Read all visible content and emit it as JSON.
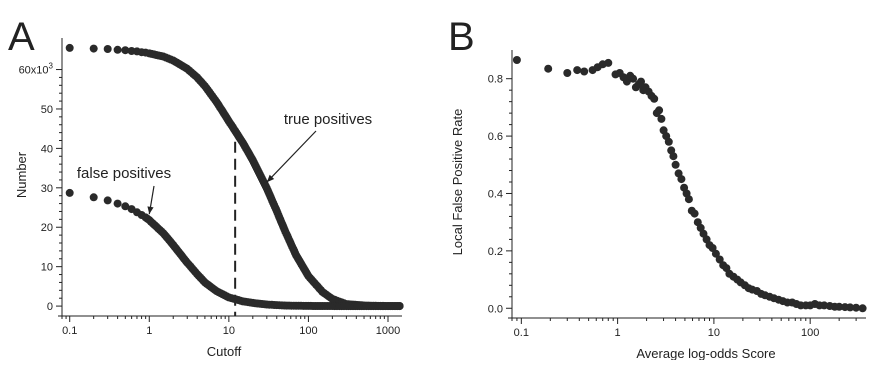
{
  "chart_data": [
    {
      "panel_label": "A",
      "type": "scatter",
      "xlabel": "Cutoff",
      "ylabel": "Number",
      "x_scale": "log",
      "xlim": [
        0.08,
        1500
      ],
      "ylim": [
        -1500,
        68000
      ],
      "x_ticks": [
        {
          "value": 0.1,
          "label": "0.1"
        },
        {
          "value": 1,
          "label": "1"
        },
        {
          "value": 10,
          "label": "10"
        },
        {
          "value": 100,
          "label": "100"
        },
        {
          "value": 1000,
          "label": "1000"
        }
      ],
      "y_ticks": [
        {
          "value": 0,
          "label": "0"
        },
        {
          "value": 10000,
          "label": "10"
        },
        {
          "value": 20000,
          "label": "20"
        },
        {
          "value": 30000,
          "label": "30"
        },
        {
          "value": 40000,
          "label": "40"
        },
        {
          "value": 50000,
          "label": "50"
        },
        {
          "value": 60000,
          "label": "60x10"
        }
      ],
      "y_exponent_suffix": "3",
      "vline": {
        "x": 12,
        "style": "dashed"
      },
      "series": [
        {
          "name": "true positives",
          "x": [
            0.1,
            0.2,
            0.3,
            0.4,
            0.5,
            0.6,
            0.7,
            0.8,
            0.9,
            1,
            1.5,
            2,
            3,
            4,
            5,
            7,
            10,
            15,
            20,
            30,
            40,
            50,
            70,
            100,
            150,
            200,
            300,
            500,
            700,
            1000,
            1400
          ],
          "y": [
            65500,
            65300,
            65200,
            65000,
            64900,
            64700,
            64600,
            64400,
            64300,
            64100,
            63300,
            62300,
            60200,
            58000,
            55800,
            51800,
            46900,
            41400,
            37000,
            29900,
            24100,
            19400,
            12900,
            7600,
            3600,
            1800,
            500,
            150,
            60,
            20,
            10
          ]
        },
        {
          "name": "false positives",
          "x": [
            0.1,
            0.2,
            0.3,
            0.4,
            0.5,
            0.6,
            0.7,
            0.8,
            0.9,
            1,
            1.5,
            2,
            3,
            4,
            5,
            7,
            10,
            15,
            20,
            30,
            40,
            50,
            70,
            100,
            150,
            200,
            300,
            500,
            700,
            1000,
            1400
          ],
          "y": [
            28700,
            27600,
            26800,
            26000,
            25300,
            24600,
            23800,
            23100,
            22500,
            21800,
            18500,
            15500,
            11000,
            8100,
            6000,
            3800,
            2200,
            1200,
            800,
            400,
            250,
            150,
            80,
            40,
            20,
            10,
            5,
            0,
            0,
            0,
            0
          ]
        }
      ],
      "annotations": [
        {
          "text": "true positives",
          "target_series": "true positives",
          "target_x": 30
        },
        {
          "text": "false positives",
          "target_series": "false positives",
          "target_x": 1
        }
      ],
      "grid": false
    },
    {
      "panel_label": "B",
      "type": "scatter",
      "xlabel": "Average log-odds Score",
      "ylabel": "Local False Positive Rate",
      "x_scale": "log",
      "xlim": [
        0.08,
        380
      ],
      "ylim": [
        -0.02,
        0.9
      ],
      "x_ticks": [
        {
          "value": 0.1,
          "label": "0.1"
        },
        {
          "value": 1,
          "label": "1"
        },
        {
          "value": 10,
          "label": "10"
        },
        {
          "value": 100,
          "label": "100"
        }
      ],
      "y_ticks": [
        {
          "value": 0.0,
          "label": "0.0"
        },
        {
          "value": 0.2,
          "label": "0.2"
        },
        {
          "value": 0.4,
          "label": "0.4"
        },
        {
          "value": 0.6,
          "label": "0.6"
        },
        {
          "value": 0.8,
          "label": "0.8"
        }
      ],
      "series": [
        {
          "x": [
            0.09,
            0.19,
            0.3,
            0.38,
            0.45,
            0.55,
            0.62,
            0.7,
            0.8,
            0.95,
            1.05,
            1.15,
            1.25,
            1.35,
            1.45,
            1.55,
            1.65,
            1.75,
            1.85,
            1.95,
            2.1,
            2.25,
            2.4,
            2.55,
            2.7,
            2.85,
            3.0,
            3.2,
            3.4,
            3.6,
            3.8,
            4.0,
            4.3,
            4.6,
            4.9,
            5.2,
            5.5,
            5.9,
            6.3,
            6.8,
            7.3,
            7.8,
            8.4,
            9.0,
            9.7,
            10.5,
            11.5,
            12.5,
            13.5,
            14.5,
            16,
            17.5,
            19,
            21,
            23,
            25,
            28,
            31,
            34,
            38,
            42,
            47,
            52,
            58,
            65,
            72,
            80,
            90,
            100,
            112,
            125,
            140,
            160,
            180,
            200,
            230,
            260,
            300,
            350
          ],
          "y": [
            0.865,
            0.835,
            0.82,
            0.83,
            0.825,
            0.83,
            0.84,
            0.85,
            0.855,
            0.815,
            0.82,
            0.805,
            0.79,
            0.81,
            0.8,
            0.77,
            0.78,
            0.79,
            0.76,
            0.77,
            0.755,
            0.74,
            0.73,
            0.68,
            0.69,
            0.66,
            0.62,
            0.6,
            0.58,
            0.55,
            0.53,
            0.5,
            0.47,
            0.45,
            0.42,
            0.4,
            0.38,
            0.34,
            0.33,
            0.3,
            0.28,
            0.26,
            0.24,
            0.22,
            0.21,
            0.19,
            0.17,
            0.15,
            0.14,
            0.12,
            0.11,
            0.1,
            0.09,
            0.08,
            0.07,
            0.065,
            0.06,
            0.05,
            0.045,
            0.04,
            0.035,
            0.03,
            0.025,
            0.02,
            0.02,
            0.015,
            0.01,
            0.01,
            0.01,
            0.015,
            0.01,
            0.01,
            0.008,
            0.005,
            0.005,
            0.004,
            0.003,
            0.002,
            0.0
          ]
        }
      ],
      "grid": false
    }
  ]
}
